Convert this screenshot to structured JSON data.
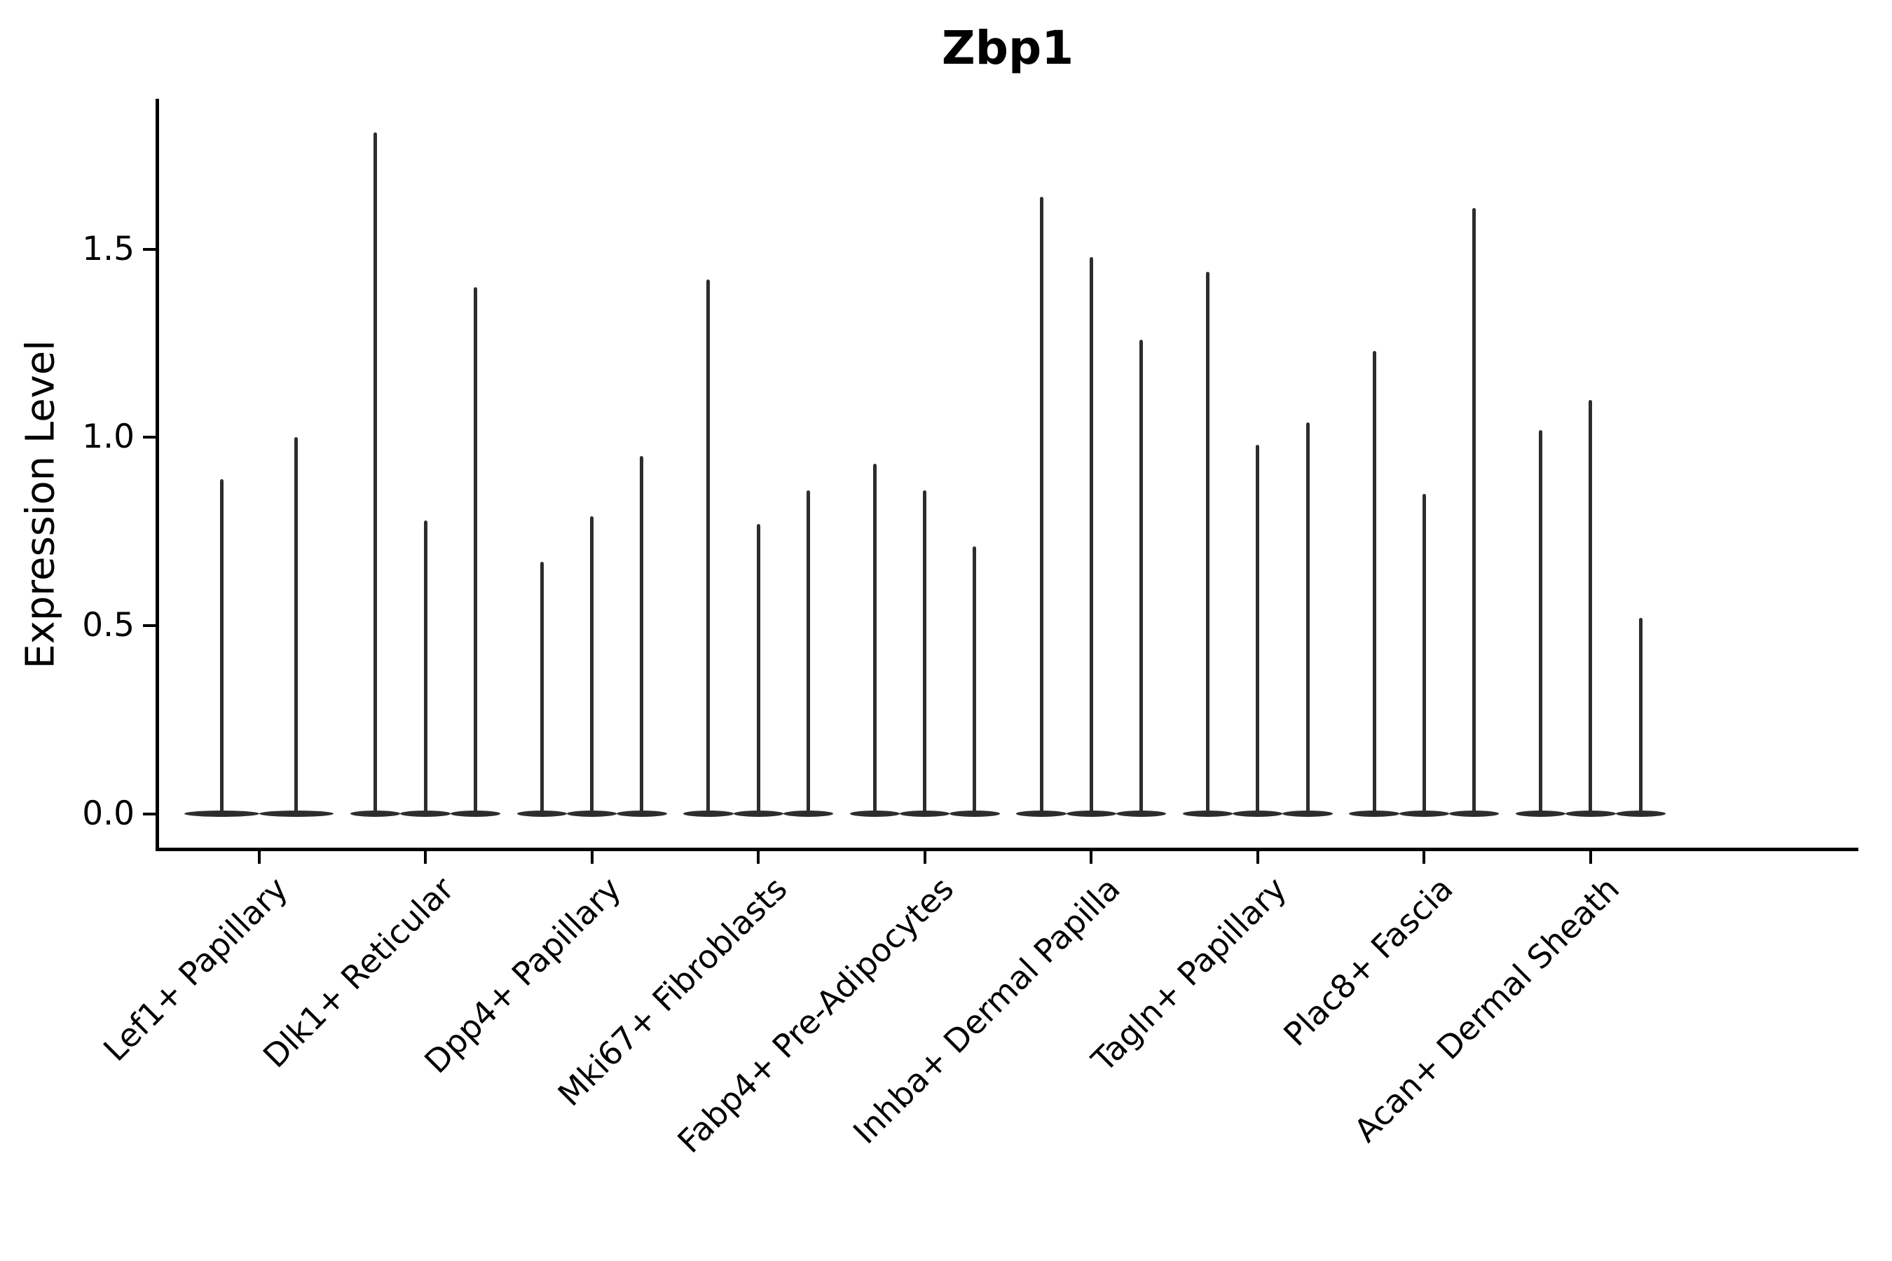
{
  "title": "Zbp1",
  "colors": {
    "violin": "#2d2d2d",
    "axis": "#000000",
    "text": "#000000",
    "background": "#ffffff"
  },
  "chart_data": {
    "type": "violin",
    "title": "Zbp1",
    "ylabel": "Expression Level",
    "xlabel": "",
    "grid": false,
    "legend": false,
    "yticks": [
      "0.0",
      "0.5",
      "1.0",
      "1.5"
    ],
    "ytick_values": [
      0.0,
      0.5,
      1.0,
      1.5
    ],
    "ylim": [
      -0.09,
      1.9
    ],
    "categories": [
      "Lef1+ Papillary",
      "Dlk1+ Reticular",
      "Dpp4+ Papillary",
      "Mki67+ Fibroblasts",
      "Fabp4+ Pre-Adipocytes",
      "Inhba+ Dermal Papilla",
      "Tagln+ Papillary",
      "Plac8+ Fascia",
      "Acan+ Dermal Sheath"
    ],
    "violins_per_category": [
      2,
      3,
      3,
      3,
      3,
      3,
      3,
      3,
      3
    ],
    "max_expression": [
      [
        0.89,
        1.0
      ],
      [
        1.81,
        0.78,
        1.4
      ],
      [
        0.67,
        0.79,
        0.95
      ],
      [
        1.42,
        0.77,
        0.86
      ],
      [
        0.93,
        0.86,
        0.71
      ],
      [
        1.64,
        1.48,
        1.26
      ],
      [
        1.44,
        0.98,
        1.04
      ],
      [
        1.23,
        0.85,
        1.61
      ],
      [
        1.02,
        1.1,
        0.52
      ]
    ],
    "description": "Violin plot of Zbp1 expression per fibroblast cluster; density mass concentrated at 0 (flat base) with thin spikes reaching each violin's maximum expression value."
  }
}
